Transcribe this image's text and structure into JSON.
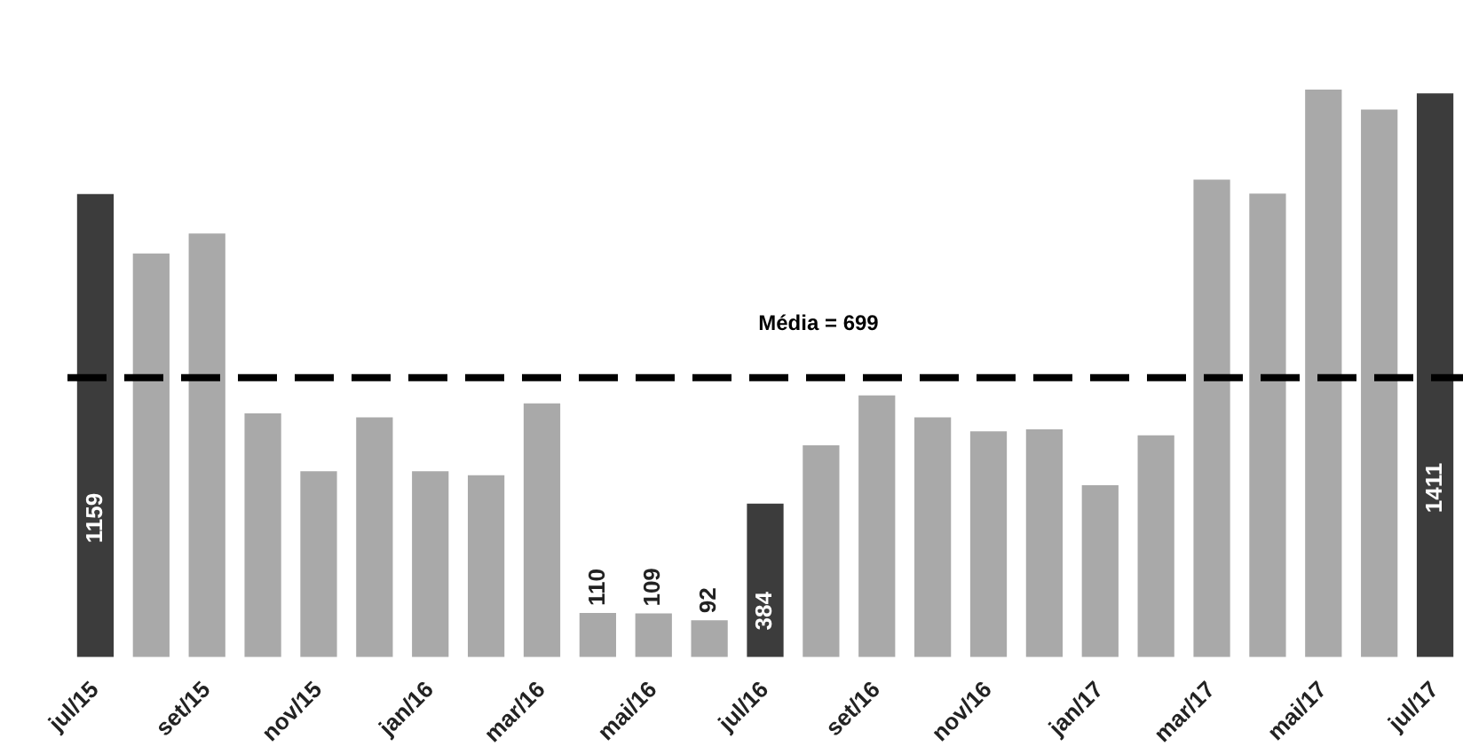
{
  "chart_data": {
    "type": "bar",
    "categories": [
      "jul/15",
      null,
      "set/15",
      null,
      "nov/15",
      null,
      "jan/16",
      null,
      "mar/16",
      null,
      "mai/16",
      null,
      "jul/16",
      null,
      "set/16",
      null,
      "nov/16",
      null,
      "jan/17",
      null,
      "mar/17",
      null,
      "mai/17",
      null,
      "jul/17"
    ],
    "values": [
      1159,
      1010,
      1060,
      610,
      465,
      600,
      465,
      455,
      635,
      110,
      109,
      92,
      384,
      530,
      655,
      600,
      565,
      570,
      430,
      555,
      1195,
      1160,
      1420,
      1370,
      1411
    ],
    "colors": [
      "#3c3c3c",
      "#a9a9a9",
      "#a9a9a9",
      "#a9a9a9",
      "#a9a9a9",
      "#a9a9a9",
      "#a9a9a9",
      "#a9a9a9",
      "#a9a9a9",
      "#a9a9a9",
      "#a9a9a9",
      "#a9a9a9",
      "#3c3c3c",
      "#a9a9a9",
      "#a9a9a9",
      "#a9a9a9",
      "#a9a9a9",
      "#a9a9a9",
      "#a9a9a9",
      "#a9a9a9",
      "#a9a9a9",
      "#a9a9a9",
      "#a9a9a9",
      "#a9a9a9",
      "#3c3c3c"
    ],
    "value_labels": [
      "1159",
      null,
      null,
      null,
      null,
      null,
      null,
      null,
      null,
      "110",
      "109",
      "92",
      "384",
      null,
      null,
      null,
      null,
      null,
      null,
      null,
      null,
      null,
      null,
      null,
      "1411"
    ],
    "ref_lines": [
      {
        "axis": "y",
        "value": 699,
        "label": "Média = 699",
        "color": "#000000",
        "line_style": "dashed"
      }
    ],
    "grid": false,
    "legend": false
  }
}
